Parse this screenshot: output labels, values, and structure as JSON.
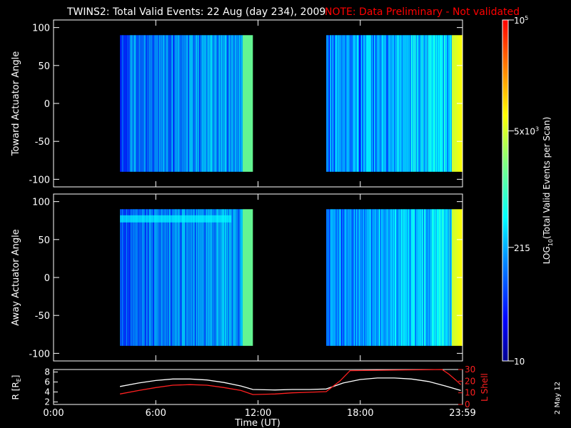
{
  "title": "TWINS2: Total Valid Events: 22 Aug (day 234), 2009",
  "note": "NOTE: Data Preliminary - Not validated",
  "side_date": "2 May 12",
  "colors": {
    "background": "#000000",
    "axes": "#ffffff",
    "note": "#ff0000",
    "lshell": "#ff2020",
    "radius": "#ffffff"
  },
  "chart_data": [
    {
      "type": "heatmap",
      "panel": "top",
      "ylabel": "Toward Actuator Angle",
      "xlim": [
        0,
        24
      ],
      "ylim": [
        -110,
        110
      ],
      "yticks": [
        100,
        50,
        0,
        -50,
        -100
      ],
      "xticks_hours": [
        0,
        6,
        12,
        18,
        24
      ],
      "data_intervals_hours": [
        [
          3.9,
          11.7
        ],
        [
          16.0,
          24.0
        ]
      ],
      "angle_range": [
        -90,
        90
      ],
      "colorscale": "log10",
      "value_range": [
        10,
        100000
      ]
    },
    {
      "type": "heatmap",
      "panel": "middle",
      "ylabel": "Away Actuator Angle",
      "xlim": [
        0,
        24
      ],
      "ylim": [
        -110,
        110
      ],
      "yticks": [
        100,
        50,
        0,
        -50,
        -100
      ],
      "xticks_hours": [
        0,
        6,
        12,
        18,
        24
      ],
      "data_intervals_hours": [
        [
          3.9,
          11.7
        ],
        [
          16.0,
          24.0
        ]
      ],
      "angle_range": [
        -90,
        90
      ],
      "colorscale": "log10",
      "value_range": [
        10,
        100000
      ]
    },
    {
      "type": "line",
      "panel": "bottom",
      "ylabel": "R [R",
      "ylabel_sub": "E",
      "ylabel_end": "]",
      "ylabel_right": "L Shell",
      "xlabel": "Time (UT)",
      "xlim": [
        0,
        24
      ],
      "ylim_left": [
        1.5,
        8.5
      ],
      "ylim_right": [
        0,
        30
      ],
      "yticks_left": [
        "8",
        "6",
        "4",
        "2"
      ],
      "yticks_right": [
        "30",
        "20",
        "10",
        "0"
      ],
      "xtick_labels": [
        "0:00",
        "6:00",
        "12:00",
        "18:00",
        "23:59"
      ],
      "series": [
        {
          "color": "#ffffff",
          "axis": "left",
          "x": [
            3.9,
            5,
            6,
            7,
            8,
            9,
            10,
            11,
            11.7,
            13,
            14,
            15,
            16,
            17,
            18,
            19,
            20,
            21,
            22,
            23,
            23.9
          ],
          "y": [
            5.1,
            5.8,
            6.3,
            6.6,
            6.6,
            6.4,
            5.9,
            5.2,
            4.5,
            4.4,
            4.5,
            4.5,
            4.6,
            5.8,
            6.5,
            6.8,
            6.8,
            6.6,
            6.1,
            5.2,
            4.3
          ]
        },
        {
          "color": "#ff2020",
          "axis": "right",
          "x": [
            3.9,
            5,
            6,
            7,
            8,
            9,
            10,
            11,
            11.7,
            13,
            14,
            15,
            16,
            16.8,
            17.4,
            22.8,
            23.2,
            23.6,
            23.9
          ],
          "y": [
            9,
            12,
            14.5,
            16.5,
            17,
            16.5,
            14.5,
            12,
            8.5,
            9,
            10,
            10.5,
            11,
            20,
            29,
            30,
            26,
            21,
            17
          ]
        }
      ]
    }
  ],
  "colorbar": {
    "label_main": "LOG",
    "label_sub": "10",
    "label_rest": "(Total Valid Events per Scan)",
    "ticks": [
      {
        "value": 100000,
        "text": "10",
        "sup": "5",
        "sup2": ""
      },
      {
        "value": 5000,
        "text": "5x10",
        "sup": "3",
        "sup2": ""
      },
      {
        "value": 215,
        "text": "215",
        "sup": "",
        "sup2": ""
      },
      {
        "value": 10,
        "text": "10",
        "sup": "",
        "sup2": ""
      }
    ]
  }
}
